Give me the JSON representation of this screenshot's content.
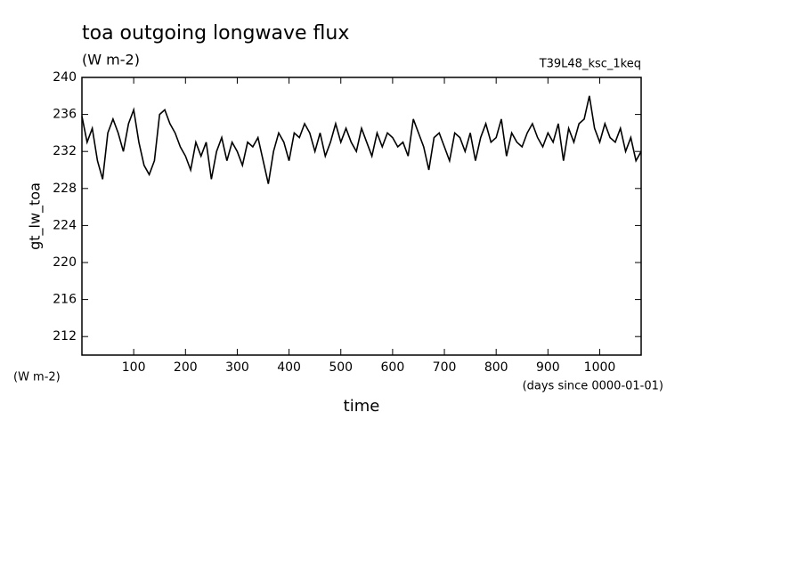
{
  "chart_data": {
    "type": "line",
    "title": "toa outgoing longwave flux",
    "subtitle": "(W m-2)",
    "annotation": "T39L48_ksc_1keq",
    "y_label": "gt_lw_toa",
    "y_units": "(W m-2)",
    "x_label": "time",
    "x_units": "(days since 0000-01-01)",
    "xlim": [
      0,
      1080
    ],
    "ylim": [
      210,
      240
    ],
    "xticks": [
      100,
      200,
      300,
      400,
      500,
      600,
      700,
      800,
      900,
      1000
    ],
    "yticks": [
      212,
      216,
      220,
      224,
      228,
      232,
      236,
      240
    ],
    "color": "#000000",
    "x": [
      0,
      10,
      20,
      30,
      40,
      50,
      60,
      70,
      80,
      90,
      100,
      110,
      120,
      130,
      140,
      150,
      160,
      170,
      180,
      190,
      200,
      210,
      220,
      230,
      240,
      250,
      260,
      270,
      280,
      290,
      300,
      310,
      320,
      330,
      340,
      350,
      360,
      370,
      380,
      390,
      400,
      410,
      420,
      430,
      440,
      450,
      460,
      470,
      480,
      490,
      500,
      510,
      520,
      530,
      540,
      550,
      560,
      570,
      580,
      590,
      600,
      610,
      620,
      630,
      640,
      650,
      660,
      670,
      680,
      690,
      700,
      710,
      720,
      730,
      740,
      750,
      760,
      770,
      780,
      790,
      800,
      810,
      820,
      830,
      840,
      850,
      860,
      870,
      880,
      890,
      900,
      910,
      920,
      930,
      940,
      950,
      960,
      970,
      980,
      990,
      1000,
      1010,
      1020,
      1030,
      1040,
      1050,
      1060,
      1070,
      1080
    ],
    "values": [
      235.8,
      233,
      234.5,
      231,
      229,
      234,
      235.5,
      234,
      232,
      235,
      236.5,
      233,
      230.5,
      229.5,
      231,
      236,
      236.5,
      235,
      234,
      232.5,
      231.5,
      230,
      233,
      231.5,
      233,
      229,
      232,
      233.5,
      231,
      233,
      232,
      230.5,
      233,
      232.5,
      233.5,
      231,
      228.5,
      232,
      234,
      233,
      231,
      234,
      233.5,
      235,
      234,
      232,
      234,
      231.5,
      233,
      235,
      233,
      234.5,
      233,
      232,
      234.5,
      233,
      231.5,
      234,
      232.5,
      234,
      233.5,
      232.5,
      233,
      231.5,
      235.5,
      234,
      232.5,
      230,
      233.5,
      234,
      232.5,
      231,
      234,
      233.5,
      232,
      234,
      231,
      233.5,
      235,
      233,
      233.5,
      235.5,
      231.5,
      234,
      233,
      232.5,
      234,
      235,
      233.5,
      232.5,
      234,
      233,
      235,
      231,
      234.5,
      233,
      235,
      235.5,
      238,
      234.5,
      233,
      235,
      233.5,
      233,
      234.5,
      232,
      233.5,
      231,
      232
    ]
  }
}
